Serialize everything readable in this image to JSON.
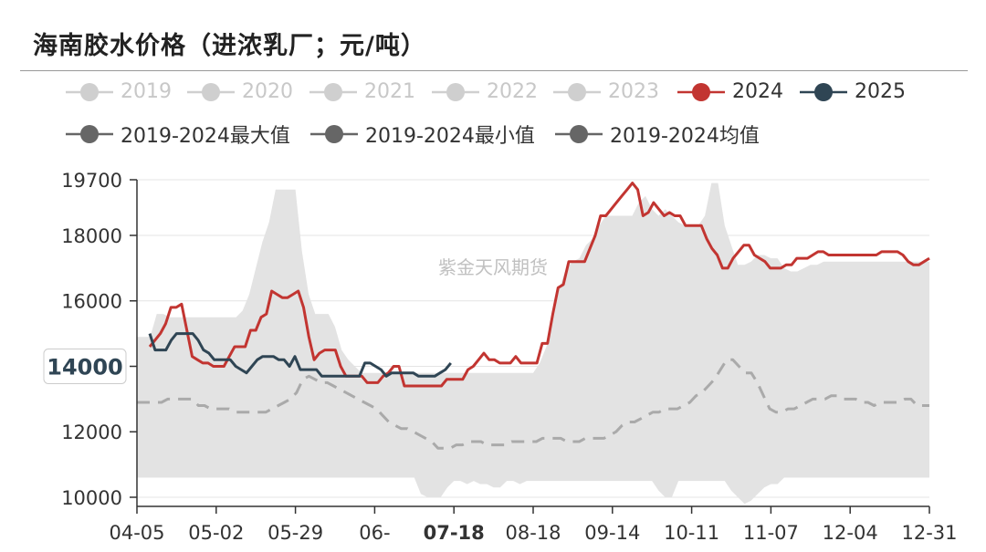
{
  "header": {
    "title": "海南胶水价格（进浓乳厂；元/吨）"
  },
  "legend": {
    "items": [
      {
        "label": "2019",
        "color": "#cfcfcf",
        "active": false
      },
      {
        "label": "2020",
        "color": "#cfcfcf",
        "active": false
      },
      {
        "label": "2021",
        "color": "#cfcfcf",
        "active": false
      },
      {
        "label": "2022",
        "color": "#cfcfcf",
        "active": false
      },
      {
        "label": "2023",
        "color": "#cfcfcf",
        "active": false
      },
      {
        "label": "2024",
        "color": "#c23531",
        "active": true
      },
      {
        "label": "2025",
        "color": "#2f4554",
        "active": true
      },
      {
        "label": "2019-2024最大值",
        "color": "#666666",
        "active": true
      },
      {
        "label": "2019-2024最小值",
        "color": "#666666",
        "active": true
      },
      {
        "label": "2019-2024均值",
        "color": "#666666",
        "active": true
      }
    ]
  },
  "watermark": "紫金天风期货",
  "chart_data": {
    "type": "line",
    "title": "海南胶水价格（进浓乳厂；元/吨）",
    "x_ticks": [
      "04-05",
      "05-02",
      "05-29",
      "06-",
      "07-18",
      "08-18",
      "09-14",
      "10-11",
      "11-07",
      "12-04",
      "12-31"
    ],
    "x_highlight": "07-18",
    "y_ticks": [
      10000,
      12000,
      14000,
      16000,
      18000,
      19700
    ],
    "y_highlight": 14000,
    "ylim": [
      9800,
      19700
    ],
    "band_max": [
      14900,
      14900,
      14900,
      15600,
      15600,
      15500,
      15500,
      15500,
      15500,
      15500,
      15500,
      15500,
      15500,
      15500,
      15500,
      15500,
      15700,
      16200,
      17000,
      17800,
      18400,
      19400,
      19400,
      19400,
      19400,
      17500,
      16200,
      15600,
      15600,
      15600,
      15200,
      14500,
      14200,
      14000,
      13800,
      13800,
      13800,
      13800,
      13800,
      13800,
      13800,
      13800,
      13800,
      13800,
      13800,
      13800,
      13800,
      13800,
      13800,
      13800,
      13800,
      13800,
      13800,
      13800,
      13800,
      13800,
      13800,
      13800,
      13800,
      13800,
      13800,
      14100,
      14600,
      15600,
      16400,
      17000,
      17200,
      17300,
      17700,
      17900,
      18300,
      18600,
      18600,
      18600,
      18600,
      18600,
      19000,
      19200,
      18800,
      18600,
      18800,
      18600,
      18400,
      18300,
      18300,
      18300,
      18600,
      19600,
      19600,
      18300,
      17700,
      17100,
      17100,
      17200,
      17400,
      17400,
      17300,
      17300,
      17000,
      16900,
      16900,
      17000,
      17100,
      17100,
      17200,
      17200,
      17200,
      17200,
      17200,
      17200,
      17200,
      17200,
      17200,
      17200,
      17200,
      17200,
      17200,
      17200,
      17200,
      17200,
      17200
    ],
    "band_min": [
      10600,
      10600,
      10600,
      10600,
      10600,
      10600,
      10600,
      10600,
      10600,
      10600,
      10600,
      10600,
      10600,
      10600,
      10600,
      10600,
      10600,
      10600,
      10600,
      10600,
      10600,
      10600,
      10600,
      10600,
      10600,
      10600,
      10600,
      10600,
      10600,
      10600,
      10600,
      10600,
      10600,
      10600,
      10600,
      10600,
      10600,
      10600,
      10600,
      10600,
      10600,
      10600,
      10600,
      10100,
      10000,
      10000,
      10000,
      10300,
      10500,
      10500,
      10400,
      10500,
      10400,
      10400,
      10300,
      10300,
      10500,
      10500,
      10400,
      10500,
      10500,
      10500,
      10500,
      10500,
      10500,
      10500,
      10500,
      10500,
      10500,
      10500,
      10500,
      10500,
      10500,
      10500,
      10500,
      10500,
      10500,
      10500,
      10500,
      10200,
      10000,
      10000,
      10500,
      10500,
      10500,
      10500,
      10500,
      10500,
      10500,
      10500,
      10200,
      10000,
      9800,
      9900,
      10100,
      10300,
      10400,
      10400,
      10600,
      10600,
      10600,
      10600,
      10600,
      10600,
      10600,
      10600,
      10600,
      10600,
      10600,
      10600,
      10600,
      10600,
      10600,
      10600,
      10600,
      10600,
      10600,
      10600,
      10600,
      10600,
      10600
    ],
    "series": [
      {
        "name": "2024",
        "color": "#c23531",
        "values": [
          14600,
          14800,
          15000,
          15300,
          15800,
          15800,
          15900,
          15100,
          14300,
          14200,
          14100,
          14100,
          14000,
          14000,
          14000,
          14300,
          14600,
          14600,
          14600,
          15100,
          15100,
          15500,
          15600,
          16300,
          16200,
          16100,
          16100,
          16200,
          16300,
          15800,
          14900,
          14200,
          14400,
          14500,
          14500,
          14500,
          14000,
          13700,
          13700,
          13700,
          13700,
          13500,
          13500,
          13500,
          13700,
          13800,
          14000,
          14000,
          13400,
          13400,
          13400,
          13400,
          13400,
          13400,
          13400,
          13400,
          13600,
          13600,
          13600,
          13600,
          13900,
          14000,
          14200,
          14400,
          14200,
          14200,
          14100,
          14100,
          14100,
          14300,
          14100,
          14100,
          14100,
          14100,
          14700,
          14700,
          15600,
          16400,
          16500,
          17200,
          17200,
          17200,
          17200,
          17600,
          18000,
          18600,
          18600,
          18800,
          19000,
          19200,
          19400,
          19600,
          19400,
          18600,
          18700,
          19000,
          18800,
          18600,
          18700,
          18600,
          18600,
          18300,
          18300,
          18300,
          18300,
          17900,
          17600,
          17400,
          17000,
          17000,
          17300,
          17500,
          17700,
          17700,
          17400,
          17300,
          17200,
          17000,
          17000,
          17000,
          17100,
          17100,
          17300,
          17300,
          17300,
          17400,
          17500,
          17500,
          17400,
          17400,
          17400,
          17400,
          17400,
          17400,
          17400,
          17400,
          17400,
          17400,
          17500,
          17500,
          17500,
          17500,
          17400,
          17200,
          17100,
          17100,
          17200,
          17300
        ]
      },
      {
        "name": "2025",
        "color": "#2f4554",
        "values": [
          15000,
          14500,
          14500,
          14500,
          14800,
          15000,
          15000,
          15000,
          15000,
          14800,
          14500,
          14400,
          14200,
          14200,
          14200,
          14200,
          14000,
          13900,
          13800,
          14000,
          14200,
          14300,
          14300,
          14300,
          14200,
          14200,
          14000,
          14300,
          13900,
          13900,
          13900,
          13900,
          13700,
          13700,
          13700,
          13700,
          13700,
          13700,
          13700,
          13700,
          14100,
          14100,
          14000,
          13900,
          13700,
          13800,
          13800,
          13800,
          13800,
          13800,
          13700,
          13700,
          13700,
          13700,
          13800,
          13900,
          14100
        ]
      },
      {
        "name": "2019-2024均值",
        "color": "#aaaaaa",
        "dashed": true,
        "values": [
          12900,
          12900,
          12900,
          12900,
          12900,
          13000,
          13000,
          13000,
          13000,
          13000,
          12800,
          12800,
          12700,
          12700,
          12700,
          12700,
          12600,
          12600,
          12600,
          12600,
          12600,
          12600,
          12700,
          12800,
          12900,
          13000,
          13200,
          13600,
          13700,
          13600,
          13500,
          13500,
          13400,
          13300,
          13200,
          13100,
          13000,
          12900,
          12800,
          12700,
          12500,
          12300,
          12200,
          12100,
          12100,
          12000,
          11900,
          11800,
          11700,
          11500,
          11500,
          11500,
          11600,
          11600,
          11700,
          11700,
          11700,
          11600,
          11600,
          11600,
          11600,
          11700,
          11700,
          11700,
          11700,
          11700,
          11800,
          11800,
          11800,
          11800,
          11700,
          11700,
          11700,
          11800,
          11800,
          11800,
          11800,
          11900,
          12000,
          12200,
          12300,
          12300,
          12400,
          12500,
          12600,
          12600,
          12700,
          12700,
          12700,
          12800,
          12900,
          13100,
          13200,
          13400,
          13600,
          13900,
          14200,
          14200,
          14000,
          13800,
          13800,
          13500,
          13100,
          12700,
          12600,
          12600,
          12700,
          12700,
          12800,
          12900,
          13000,
          13000,
          13000,
          13100,
          13100,
          13000,
          13000,
          13000,
          12900,
          12900,
          12800,
          12900,
          12900,
          12900,
          12900,
          13000,
          13000,
          12800,
          12800,
          12800
        ]
      }
    ]
  }
}
